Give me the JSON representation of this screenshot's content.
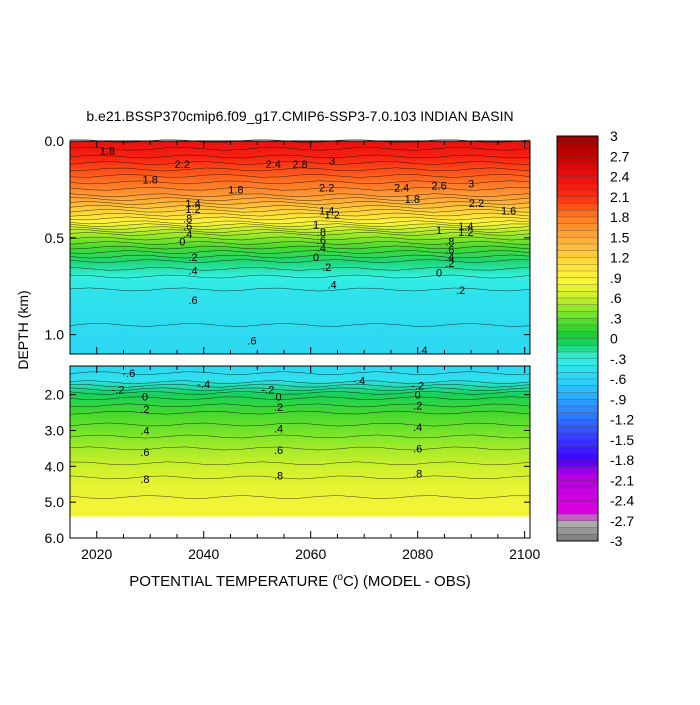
{
  "chart_data": {
    "type": "heatmap",
    "title": "b.e21.BSSP370cmip6.f09_g17.CMIP6-SSP3-7.0.103 INDIAN BASIN",
    "xlabel_prefix": "POTENTIAL TEMPERATURE (",
    "xlabel_unit_sup": "o",
    "xlabel_suffix": "C) (MODEL - OBS)",
    "ylabel": "DEPTH (km)",
    "xlim": [
      2015,
      2101
    ],
    "x_ticks": [
      2020,
      2040,
      2060,
      2080,
      2100
    ],
    "upper_panel": {
      "ylim": [
        0.0,
        1.1
      ],
      "y_ticks": [
        0.0,
        0.5,
        1.0
      ],
      "y_tick_labels": [
        "0.0",
        "0.5",
        "1.0"
      ],
      "layers": [
        {
          "depth": 0.0,
          "value": 2.4
        },
        {
          "depth": 0.08,
          "value": 2.2
        },
        {
          "depth": 0.18,
          "value": 1.9
        },
        {
          "depth": 0.28,
          "value": 1.6
        },
        {
          "depth": 0.36,
          "value": 1.2
        },
        {
          "depth": 0.42,
          "value": 0.9
        },
        {
          "depth": 0.48,
          "value": 0.5
        },
        {
          "depth": 0.55,
          "value": 0.2
        },
        {
          "depth": 0.62,
          "value": -0.1
        },
        {
          "depth": 0.7,
          "value": -0.3
        },
        {
          "depth": 0.8,
          "value": -0.45
        },
        {
          "depth": 0.95,
          "value": -0.5
        },
        {
          "depth": 1.1,
          "value": -0.55
        }
      ],
      "contour_labels": [
        {
          "x": 2022,
          "depth": 0.05,
          "text": "1.8"
        },
        {
          "x": 2030,
          "depth": 0.2,
          "text": "1.8"
        },
        {
          "x": 2036,
          "depth": 0.12,
          "text": "2.2"
        },
        {
          "x": 2046,
          "depth": 0.25,
          "text": "1.8"
        },
        {
          "x": 2053,
          "depth": 0.12,
          "text": "2.4"
        },
        {
          "x": 2058,
          "depth": 0.12,
          "text": "2.8"
        },
        {
          "x": 2064,
          "depth": 0.1,
          "text": "3"
        },
        {
          "x": 2063,
          "depth": 0.24,
          "text": "2.2"
        },
        {
          "x": 2077,
          "depth": 0.24,
          "text": "2.4"
        },
        {
          "x": 2079,
          "depth": 0.3,
          "text": "1.8"
        },
        {
          "x": 2084,
          "depth": 0.23,
          "text": "2.6"
        },
        {
          "x": 2090,
          "depth": 0.22,
          "text": "3"
        },
        {
          "x": 2091,
          "depth": 0.32,
          "text": "2.2"
        },
        {
          "x": 2097,
          "depth": 0.36,
          "text": "1.6"
        },
        {
          "x": 2038,
          "depth": 0.32,
          "text": "1.4"
        },
        {
          "x": 2038,
          "depth": 0.35,
          "text": "1.2"
        },
        {
          "x": 2037,
          "depth": 0.4,
          "text": ".8"
        },
        {
          "x": 2037,
          "depth": 0.44,
          "text": ".6"
        },
        {
          "x": 2037,
          "depth": 0.48,
          "text": ".4"
        },
        {
          "x": 2036,
          "depth": 0.52,
          "text": "0"
        },
        {
          "x": 2038,
          "depth": 0.6,
          "text": ".2"
        },
        {
          "x": 2038,
          "depth": 0.67,
          "text": ".4"
        },
        {
          "x": 2038,
          "depth": 0.82,
          "text": ".6"
        },
        {
          "x": 2063,
          "depth": 0.36,
          "text": "1.4"
        },
        {
          "x": 2064,
          "depth": 0.38,
          "text": "1.2"
        },
        {
          "x": 2061,
          "depth": 0.43,
          "text": "1"
        },
        {
          "x": 2062,
          "depth": 0.47,
          "text": ".8"
        },
        {
          "x": 2062,
          "depth": 0.51,
          "text": ".6"
        },
        {
          "x": 2062,
          "depth": 0.55,
          "text": ".4"
        },
        {
          "x": 2061,
          "depth": 0.6,
          "text": "0"
        },
        {
          "x": 2063,
          "depth": 0.65,
          "text": ".2"
        },
        {
          "x": 2064,
          "depth": 0.74,
          "text": ".4"
        },
        {
          "x": 2084,
          "depth": 0.46,
          "text": "1"
        },
        {
          "x": 2089,
          "depth": 0.44,
          "text": "1.4"
        },
        {
          "x": 2089,
          "depth": 0.47,
          "text": "1.2"
        },
        {
          "x": 2086,
          "depth": 0.52,
          "text": ".8"
        },
        {
          "x": 2086,
          "depth": 0.56,
          "text": ".6"
        },
        {
          "x": 2086,
          "depth": 0.6,
          "text": ".4"
        },
        {
          "x": 2086,
          "depth": 0.63,
          "text": ".2"
        },
        {
          "x": 2084,
          "depth": 0.68,
          "text": "0"
        },
        {
          "x": 2088,
          "depth": 0.77,
          "text": ".2"
        },
        {
          "x": 2049,
          "depth": 1.03,
          "text": ".6"
        },
        {
          "x": 2081,
          "depth": 1.08,
          "text": ".4"
        }
      ]
    },
    "lower_panel": {
      "ylim": [
        1.2,
        6.0
      ],
      "y_ticks": [
        2.0,
        3.0,
        4.0,
        5.0,
        6.0
      ],
      "y_tick_labels": [
        "2.0",
        "3.0",
        "4.0",
        "5.0",
        "6.0"
      ],
      "data_bottom_depth": 5.4,
      "layers": [
        {
          "depth": 1.2,
          "value": -0.55
        },
        {
          "depth": 1.6,
          "value": -0.45
        },
        {
          "depth": 2.0,
          "value": -0.05
        },
        {
          "depth": 2.5,
          "value": 0.2
        },
        {
          "depth": 3.0,
          "value": 0.35
        },
        {
          "depth": 3.5,
          "value": 0.5
        },
        {
          "depth": 4.0,
          "value": 0.62
        },
        {
          "depth": 4.5,
          "value": 0.75
        },
        {
          "depth": 5.0,
          "value": 0.82
        },
        {
          "depth": 5.4,
          "value": 0.85
        }
      ],
      "contour_labels": [
        {
          "x": 2026,
          "depth": 1.4,
          "text": "-.6"
        },
        {
          "x": 2040,
          "depth": 1.7,
          "text": "-.4"
        },
        {
          "x": 2069,
          "depth": 1.6,
          "text": "-.4"
        },
        {
          "x": 2024,
          "depth": 1.85,
          "text": "-.2"
        },
        {
          "x": 2052,
          "depth": 1.85,
          "text": "-.2"
        },
        {
          "x": 2080,
          "depth": 1.75,
          "text": "-.2"
        },
        {
          "x": 2029,
          "depth": 2.05,
          "text": "0"
        },
        {
          "x": 2054,
          "depth": 2.05,
          "text": "0"
        },
        {
          "x": 2080,
          "depth": 2.0,
          "text": "0"
        },
        {
          "x": 2029,
          "depth": 2.4,
          "text": ".2"
        },
        {
          "x": 2054,
          "depth": 2.35,
          "text": ".2"
        },
        {
          "x": 2080,
          "depth": 2.3,
          "text": ".2"
        },
        {
          "x": 2029,
          "depth": 3.0,
          "text": ".4"
        },
        {
          "x": 2054,
          "depth": 2.95,
          "text": ".4"
        },
        {
          "x": 2080,
          "depth": 2.9,
          "text": ".4"
        },
        {
          "x": 2029,
          "depth": 3.6,
          "text": ".6"
        },
        {
          "x": 2054,
          "depth": 3.55,
          "text": ".6"
        },
        {
          "x": 2080,
          "depth": 3.5,
          "text": ".6"
        },
        {
          "x": 2029,
          "depth": 4.35,
          "text": ".8"
        },
        {
          "x": 2054,
          "depth": 4.25,
          "text": ".8"
        },
        {
          "x": 2080,
          "depth": 4.2,
          "text": ".8"
        }
      ]
    },
    "colorbar": {
      "min": -3.0,
      "max": 3.0,
      "step": 0.1,
      "tick_labels": [
        "3",
        "2.7",
        "2.4",
        "2.1",
        "1.8",
        "1.5",
        "1.2",
        ".9",
        ".6",
        ".3",
        "0",
        "-.3",
        "-.6",
        "-.9",
        "-1.2",
        "-1.5",
        "-1.8",
        "-2.1",
        "-2.4",
        "-2.7",
        "-3"
      ],
      "color_stops": [
        {
          "v": -3.0,
          "c": "#7a7a7a"
        },
        {
          "v": -2.7,
          "c": "#b3b3b3"
        },
        {
          "v": -2.6,
          "c": "#e000e0"
        },
        {
          "v": -2.0,
          "c": "#b000e0"
        },
        {
          "v": -1.8,
          "c": "#4000ff"
        },
        {
          "v": -1.2,
          "c": "#2f6fff"
        },
        {
          "v": -0.7,
          "c": "#29c8ff"
        },
        {
          "v": -0.3,
          "c": "#33f0e0"
        },
        {
          "v": 0.0,
          "c": "#12c93d"
        },
        {
          "v": 0.3,
          "c": "#5ee02a"
        },
        {
          "v": 0.6,
          "c": "#c8f02a"
        },
        {
          "v": 0.9,
          "c": "#fff53a"
        },
        {
          "v": 1.2,
          "c": "#ffd23a"
        },
        {
          "v": 1.5,
          "c": "#ffaa40"
        },
        {
          "v": 1.8,
          "c": "#ff7a20"
        },
        {
          "v": 2.1,
          "c": "#ff2a10"
        },
        {
          "v": 2.4,
          "c": "#e81010"
        },
        {
          "v": 2.7,
          "c": "#c80000"
        },
        {
          "v": 3.0,
          "c": "#9a0000"
        }
      ]
    }
  }
}
